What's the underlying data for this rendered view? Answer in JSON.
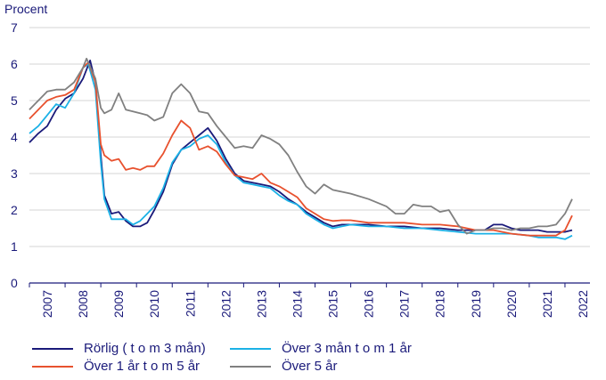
{
  "chart_data": {
    "type": "line",
    "ylabel": "Procent",
    "ylim": [
      0,
      7
    ],
    "yticks": [
      0,
      1,
      2,
      3,
      4,
      5,
      6,
      7
    ],
    "xlim": [
      2007,
      2022.7
    ],
    "xtick_labels": [
      "2007",
      "2008",
      "2009",
      "2010",
      "2011",
      "2012",
      "2013",
      "2014",
      "2015",
      "2016",
      "2017",
      "2018",
      "2019",
      "2020",
      "2021",
      "2022"
    ],
    "grid": "horizontal",
    "legend_position": "bottom",
    "series": [
      {
        "name": "Rörlig ( t o m 3 mån)",
        "color": "#1a1a7a",
        "points": [
          [
            2007.0,
            3.85
          ],
          [
            2007.25,
            4.1
          ],
          [
            2007.5,
            4.3
          ],
          [
            2007.75,
            4.75
          ],
          [
            2008.0,
            5.05
          ],
          [
            2008.25,
            5.2
          ],
          [
            2008.5,
            5.6
          ],
          [
            2008.7,
            6.1
          ],
          [
            2008.85,
            5.5
          ],
          [
            2009.0,
            3.5
          ],
          [
            2009.1,
            2.4
          ],
          [
            2009.3,
            1.9
          ],
          [
            2009.5,
            1.95
          ],
          [
            2009.7,
            1.7
          ],
          [
            2009.9,
            1.55
          ],
          [
            2010.1,
            1.55
          ],
          [
            2010.3,
            1.65
          ],
          [
            2010.5,
            2.0
          ],
          [
            2010.75,
            2.5
          ],
          [
            2011.0,
            3.25
          ],
          [
            2011.25,
            3.65
          ],
          [
            2011.5,
            3.85
          ],
          [
            2011.75,
            4.05
          ],
          [
            2012.0,
            4.25
          ],
          [
            2012.25,
            3.9
          ],
          [
            2012.5,
            3.4
          ],
          [
            2012.75,
            3.0
          ],
          [
            2013.0,
            2.8
          ],
          [
            2013.25,
            2.75
          ],
          [
            2013.5,
            2.7
          ],
          [
            2013.75,
            2.65
          ],
          [
            2014.0,
            2.5
          ],
          [
            2014.25,
            2.3
          ],
          [
            2014.5,
            2.15
          ],
          [
            2014.75,
            1.95
          ],
          [
            2015.0,
            1.8
          ],
          [
            2015.25,
            1.65
          ],
          [
            2015.5,
            1.55
          ],
          [
            2015.75,
            1.6
          ],
          [
            2016.0,
            1.6
          ],
          [
            2016.5,
            1.6
          ],
          [
            2017.0,
            1.55
          ],
          [
            2017.5,
            1.55
          ],
          [
            2018.0,
            1.5
          ],
          [
            2018.5,
            1.5
          ],
          [
            2019.0,
            1.45
          ],
          [
            2019.5,
            1.45
          ],
          [
            2019.75,
            1.45
          ],
          [
            2020.0,
            1.6
          ],
          [
            2020.25,
            1.6
          ],
          [
            2020.5,
            1.5
          ],
          [
            2020.75,
            1.45
          ],
          [
            2021.0,
            1.45
          ],
          [
            2021.25,
            1.45
          ],
          [
            2021.5,
            1.4
          ],
          [
            2021.75,
            1.4
          ],
          [
            2022.0,
            1.4
          ],
          [
            2022.2,
            1.45
          ]
        ]
      },
      {
        "name": "Över 3 mån t o m 1 år",
        "color": "#1bb1e6",
        "points": [
          [
            2007.0,
            4.1
          ],
          [
            2007.25,
            4.3
          ],
          [
            2007.5,
            4.6
          ],
          [
            2007.75,
            4.9
          ],
          [
            2008.0,
            4.8
          ],
          [
            2008.25,
            5.2
          ],
          [
            2008.5,
            5.9
          ],
          [
            2008.65,
            6.0
          ],
          [
            2008.85,
            5.3
          ],
          [
            2009.0,
            3.3
          ],
          [
            2009.1,
            2.3
          ],
          [
            2009.3,
            1.75
          ],
          [
            2009.5,
            1.75
          ],
          [
            2009.7,
            1.75
          ],
          [
            2009.9,
            1.6
          ],
          [
            2010.1,
            1.7
          ],
          [
            2010.3,
            1.9
          ],
          [
            2010.5,
            2.1
          ],
          [
            2010.75,
            2.6
          ],
          [
            2011.0,
            3.3
          ],
          [
            2011.25,
            3.65
          ],
          [
            2011.5,
            3.75
          ],
          [
            2011.75,
            3.95
          ],
          [
            2012.0,
            4.05
          ],
          [
            2012.25,
            3.8
          ],
          [
            2012.5,
            3.3
          ],
          [
            2012.75,
            2.95
          ],
          [
            2013.0,
            2.75
          ],
          [
            2013.25,
            2.7
          ],
          [
            2013.5,
            2.65
          ],
          [
            2013.75,
            2.6
          ],
          [
            2014.0,
            2.4
          ],
          [
            2014.25,
            2.25
          ],
          [
            2014.5,
            2.15
          ],
          [
            2014.75,
            1.9
          ],
          [
            2015.0,
            1.75
          ],
          [
            2015.25,
            1.6
          ],
          [
            2015.5,
            1.5
          ],
          [
            2015.75,
            1.55
          ],
          [
            2016.0,
            1.6
          ],
          [
            2016.5,
            1.55
          ],
          [
            2017.0,
            1.55
          ],
          [
            2017.5,
            1.5
          ],
          [
            2018.0,
            1.5
          ],
          [
            2018.5,
            1.45
          ],
          [
            2019.0,
            1.4
          ],
          [
            2019.5,
            1.35
          ],
          [
            2020.0,
            1.35
          ],
          [
            2020.5,
            1.35
          ],
          [
            2021.0,
            1.3
          ],
          [
            2021.25,
            1.25
          ],
          [
            2021.5,
            1.25
          ],
          [
            2021.75,
            1.25
          ],
          [
            2022.0,
            1.2
          ],
          [
            2022.2,
            1.3
          ]
        ]
      },
      {
        "name": "Över 1 år t o m 5 år",
        "color": "#e8512e",
        "points": [
          [
            2007.0,
            4.5
          ],
          [
            2007.25,
            4.75
          ],
          [
            2007.5,
            5.0
          ],
          [
            2007.75,
            5.1
          ],
          [
            2008.0,
            5.15
          ],
          [
            2008.25,
            5.3
          ],
          [
            2008.5,
            5.9
          ],
          [
            2008.65,
            6.05
          ],
          [
            2008.85,
            5.5
          ],
          [
            2009.0,
            3.8
          ],
          [
            2009.1,
            3.5
          ],
          [
            2009.3,
            3.35
          ],
          [
            2009.5,
            3.4
          ],
          [
            2009.7,
            3.1
          ],
          [
            2009.9,
            3.15
          ],
          [
            2010.1,
            3.1
          ],
          [
            2010.3,
            3.2
          ],
          [
            2010.5,
            3.2
          ],
          [
            2010.75,
            3.55
          ],
          [
            2011.0,
            4.05
          ],
          [
            2011.25,
            4.45
          ],
          [
            2011.5,
            4.25
          ],
          [
            2011.75,
            3.65
          ],
          [
            2012.0,
            3.75
          ],
          [
            2012.25,
            3.6
          ],
          [
            2012.5,
            3.25
          ],
          [
            2012.75,
            2.95
          ],
          [
            2013.0,
            2.9
          ],
          [
            2013.25,
            2.85
          ],
          [
            2013.5,
            3.0
          ],
          [
            2013.75,
            2.75
          ],
          [
            2014.0,
            2.65
          ],
          [
            2014.25,
            2.5
          ],
          [
            2014.5,
            2.35
          ],
          [
            2014.75,
            2.05
          ],
          [
            2015.0,
            1.9
          ],
          [
            2015.25,
            1.75
          ],
          [
            2015.5,
            1.7
          ],
          [
            2015.75,
            1.72
          ],
          [
            2016.0,
            1.72
          ],
          [
            2016.5,
            1.65
          ],
          [
            2017.0,
            1.65
          ],
          [
            2017.5,
            1.65
          ],
          [
            2018.0,
            1.6
          ],
          [
            2018.5,
            1.6
          ],
          [
            2019.0,
            1.55
          ],
          [
            2019.5,
            1.45
          ],
          [
            2020.0,
            1.45
          ],
          [
            2020.5,
            1.35
          ],
          [
            2021.0,
            1.3
          ],
          [
            2021.25,
            1.3
          ],
          [
            2021.5,
            1.3
          ],
          [
            2021.75,
            1.3
          ],
          [
            2022.0,
            1.45
          ],
          [
            2022.2,
            1.85
          ]
        ]
      },
      {
        "name": "Över 5 år",
        "color": "#808080",
        "points": [
          [
            2007.0,
            4.75
          ],
          [
            2007.25,
            5.0
          ],
          [
            2007.5,
            5.25
          ],
          [
            2007.75,
            5.3
          ],
          [
            2008.0,
            5.3
          ],
          [
            2008.25,
            5.5
          ],
          [
            2008.5,
            5.9
          ],
          [
            2008.6,
            6.15
          ],
          [
            2008.85,
            5.6
          ],
          [
            2009.0,
            4.8
          ],
          [
            2009.1,
            4.65
          ],
          [
            2009.3,
            4.75
          ],
          [
            2009.5,
            5.2
          ],
          [
            2009.7,
            4.75
          ],
          [
            2009.9,
            4.7
          ],
          [
            2010.1,
            4.65
          ],
          [
            2010.3,
            4.6
          ],
          [
            2010.5,
            4.45
          ],
          [
            2010.75,
            4.55
          ],
          [
            2011.0,
            5.2
          ],
          [
            2011.25,
            5.45
          ],
          [
            2011.5,
            5.2
          ],
          [
            2011.75,
            4.7
          ],
          [
            2012.0,
            4.65
          ],
          [
            2012.25,
            4.3
          ],
          [
            2012.5,
            4.0
          ],
          [
            2012.75,
            3.7
          ],
          [
            2013.0,
            3.75
          ],
          [
            2013.25,
            3.7
          ],
          [
            2013.5,
            4.05
          ],
          [
            2013.75,
            3.95
          ],
          [
            2014.0,
            3.8
          ],
          [
            2014.25,
            3.5
          ],
          [
            2014.5,
            3.05
          ],
          [
            2014.75,
            2.65
          ],
          [
            2015.0,
            2.45
          ],
          [
            2015.25,
            2.7
          ],
          [
            2015.5,
            2.55
          ],
          [
            2015.75,
            2.5
          ],
          [
            2016.0,
            2.45
          ],
          [
            2016.5,
            2.3
          ],
          [
            2017.0,
            2.1
          ],
          [
            2017.25,
            1.9
          ],
          [
            2017.5,
            1.9
          ],
          [
            2017.75,
            2.15
          ],
          [
            2018.0,
            2.1
          ],
          [
            2018.25,
            2.1
          ],
          [
            2018.5,
            1.95
          ],
          [
            2018.75,
            2.0
          ],
          [
            2019.0,
            1.6
          ],
          [
            2019.25,
            1.35
          ],
          [
            2019.5,
            1.45
          ],
          [
            2019.75,
            1.45
          ],
          [
            2020.0,
            1.5
          ],
          [
            2020.25,
            1.5
          ],
          [
            2020.5,
            1.45
          ],
          [
            2020.75,
            1.5
          ],
          [
            2021.0,
            1.5
          ],
          [
            2021.25,
            1.55
          ],
          [
            2021.5,
            1.55
          ],
          [
            2021.75,
            1.6
          ],
          [
            2022.0,
            1.9
          ],
          [
            2022.2,
            2.3
          ]
        ]
      }
    ]
  }
}
